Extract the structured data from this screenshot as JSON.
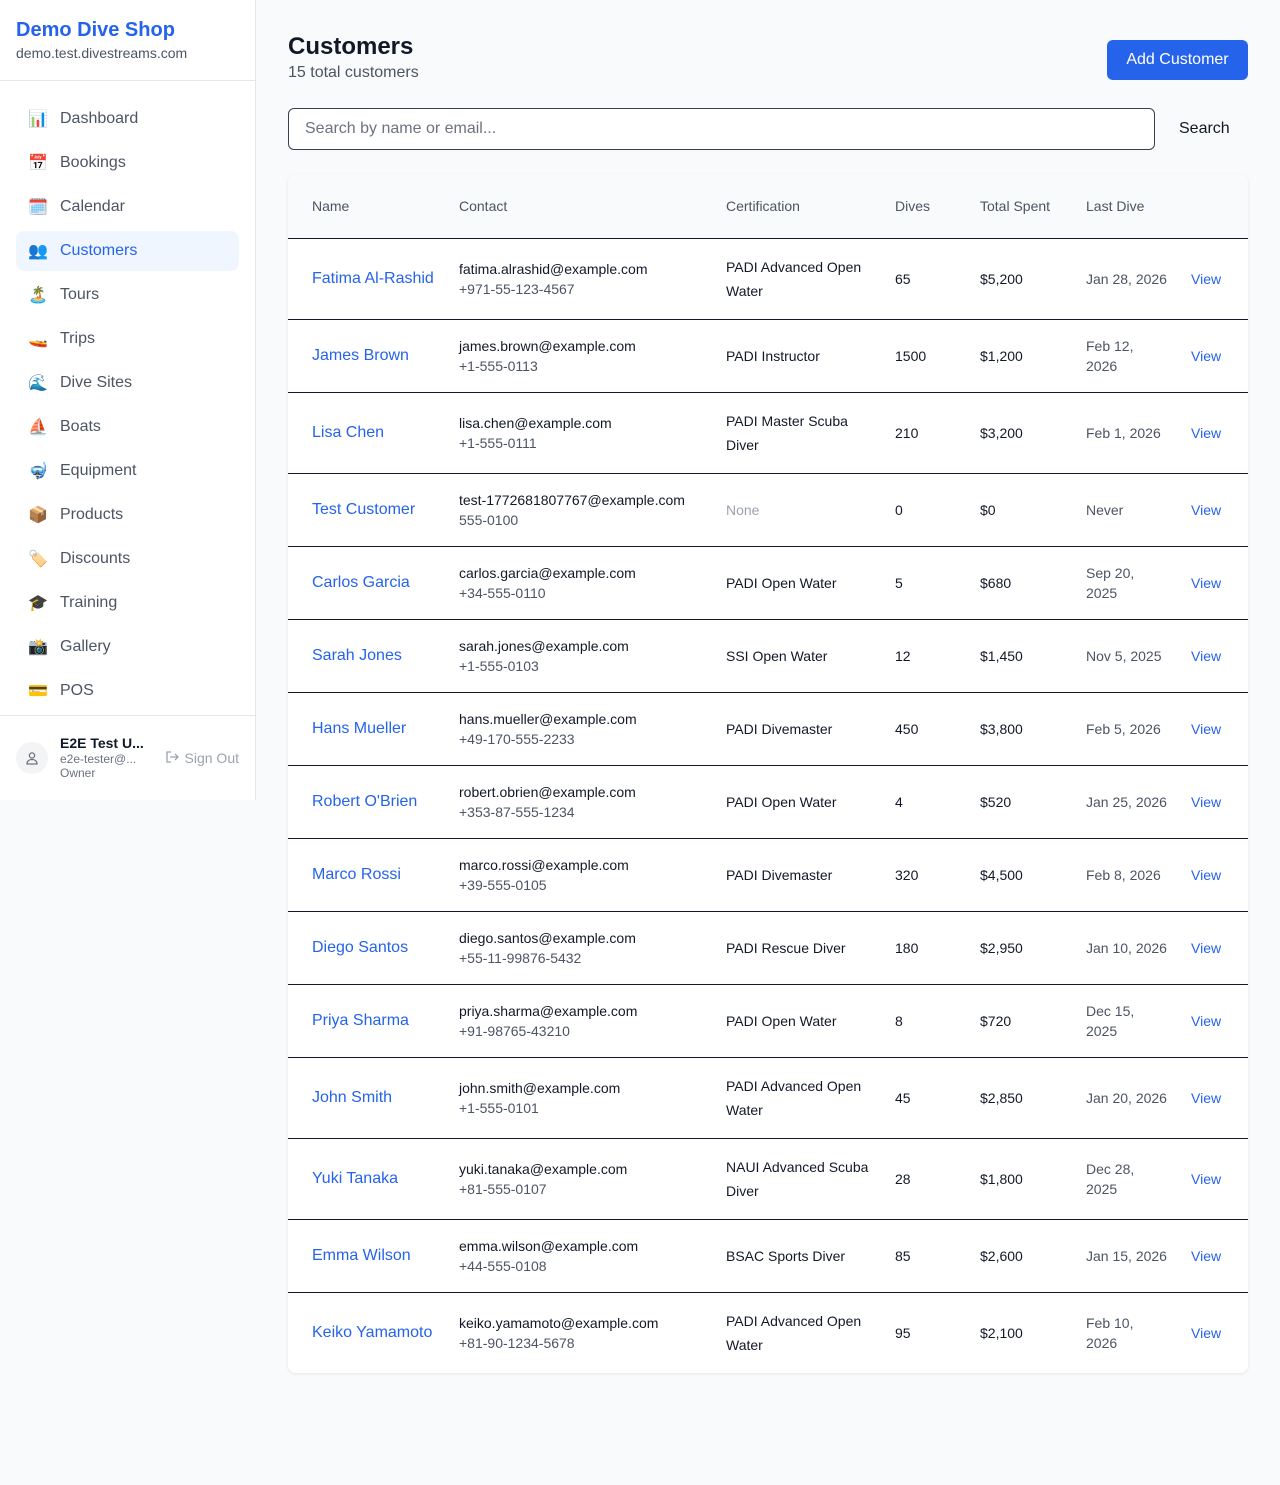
{
  "sidebar": {
    "shop_name": "Demo Dive Shop",
    "domain": "demo.test.divestreams.com",
    "items": [
      {
        "label": "Dashboard",
        "icon": "📊",
        "icon_name": "bar-chart-icon"
      },
      {
        "label": "Bookings",
        "icon": "📅",
        "icon_name": "calendar-date-icon"
      },
      {
        "label": "Calendar",
        "icon": "🗓️",
        "icon_name": "calendar-icon"
      },
      {
        "label": "Customers",
        "icon": "👥",
        "icon_name": "users-icon",
        "active": true
      },
      {
        "label": "Tours",
        "icon": "🏝️",
        "icon_name": "island-icon"
      },
      {
        "label": "Trips",
        "icon": "🚤",
        "icon_name": "speedboat-icon"
      },
      {
        "label": "Dive Sites",
        "icon": "🌊",
        "icon_name": "wave-icon"
      },
      {
        "label": "Boats",
        "icon": "⛵",
        "icon_name": "sailboat-icon"
      },
      {
        "label": "Equipment",
        "icon": "🤿",
        "icon_name": "diving-mask-icon"
      },
      {
        "label": "Products",
        "icon": "📦",
        "icon_name": "package-icon"
      },
      {
        "label": "Discounts",
        "icon": "🏷️",
        "icon_name": "tag-icon"
      },
      {
        "label": "Training",
        "icon": "🎓",
        "icon_name": "graduation-cap-icon"
      },
      {
        "label": "Gallery",
        "icon": "📸",
        "icon_name": "camera-icon"
      },
      {
        "label": "POS",
        "icon": "💳",
        "icon_name": "credit-card-icon"
      }
    ],
    "user": {
      "name": "E2E Test U...",
      "email": "e2e-tester@...",
      "role": "Owner",
      "sign_out": "Sign Out"
    }
  },
  "header": {
    "title": "Customers",
    "subtitle": "15 total customers",
    "add_button": "Add Customer"
  },
  "search": {
    "placeholder": "Search by name or email...",
    "value": "",
    "button": "Search"
  },
  "table": {
    "headers": [
      "Name",
      "Contact",
      "Certification",
      "Dives",
      "Total Spent",
      "Last Dive",
      ""
    ],
    "view_label": "View",
    "rows": [
      {
        "name": "Fatima Al-Rashid",
        "email": "fatima.alrashid@example.com",
        "phone": "+971-55-123-4567",
        "cert": "PADI Advanced Open Water",
        "dives": "65",
        "spent": "$5,200",
        "last": "Jan 28, 2026"
      },
      {
        "name": "James Brown",
        "email": "james.brown@example.com",
        "phone": "+1-555-0113",
        "cert": "PADI Instructor",
        "dives": "1500",
        "spent": "$1,200",
        "last": "Feb 12, 2026"
      },
      {
        "name": "Lisa Chen",
        "email": "lisa.chen@example.com",
        "phone": "+1-555-0111",
        "cert": "PADI Master Scuba Diver",
        "dives": "210",
        "spent": "$3,200",
        "last": "Feb 1, 2026"
      },
      {
        "name": "Test Customer",
        "email": "test-1772681807767@example.com",
        "phone": "555-0100",
        "cert": "None",
        "dives": "0",
        "spent": "$0",
        "last": "Never"
      },
      {
        "name": "Carlos Garcia",
        "email": "carlos.garcia@example.com",
        "phone": "+34-555-0110",
        "cert": "PADI Open Water",
        "dives": "5",
        "spent": "$680",
        "last": "Sep 20, 2025"
      },
      {
        "name": "Sarah Jones",
        "email": "sarah.jones@example.com",
        "phone": "+1-555-0103",
        "cert": "SSI Open Water",
        "dives": "12",
        "spent": "$1,450",
        "last": "Nov 5, 2025"
      },
      {
        "name": "Hans Mueller",
        "email": "hans.mueller@example.com",
        "phone": "+49-170-555-2233",
        "cert": "PADI Divemaster",
        "dives": "450",
        "spent": "$3,800",
        "last": "Feb 5, 2026"
      },
      {
        "name": "Robert O'Brien",
        "email": "robert.obrien@example.com",
        "phone": "+353-87-555-1234",
        "cert": "PADI Open Water",
        "dives": "4",
        "spent": "$520",
        "last": "Jan 25, 2026"
      },
      {
        "name": "Marco Rossi",
        "email": "marco.rossi@example.com",
        "phone": "+39-555-0105",
        "cert": "PADI Divemaster",
        "dives": "320",
        "spent": "$4,500",
        "last": "Feb 8, 2026"
      },
      {
        "name": "Diego Santos",
        "email": "diego.santos@example.com",
        "phone": "+55-11-99876-5432",
        "cert": "PADI Rescue Diver",
        "dives": "180",
        "spent": "$2,950",
        "last": "Jan 10, 2026"
      },
      {
        "name": "Priya Sharma",
        "email": "priya.sharma@example.com",
        "phone": "+91-98765-43210",
        "cert": "PADI Open Water",
        "dives": "8",
        "spent": "$720",
        "last": "Dec 15, 2025"
      },
      {
        "name": "John Smith",
        "email": "john.smith@example.com",
        "phone": "+1-555-0101",
        "cert": "PADI Advanced Open Water",
        "dives": "45",
        "spent": "$2,850",
        "last": "Jan 20, 2026"
      },
      {
        "name": "Yuki Tanaka",
        "email": "yuki.tanaka@example.com",
        "phone": "+81-555-0107",
        "cert": "NAUI Advanced Scuba Diver",
        "dives": "28",
        "spent": "$1,800",
        "last": "Dec 28, 2025"
      },
      {
        "name": "Emma Wilson",
        "email": "emma.wilson@example.com",
        "phone": "+44-555-0108",
        "cert": "BSAC Sports Diver",
        "dives": "85",
        "spent": "$2,600",
        "last": "Jan 15, 2026"
      },
      {
        "name": "Keiko Yamamoto",
        "email": "keiko.yamamoto@example.com",
        "phone": "+81-90-1234-5678",
        "cert": "PADI Advanced Open Water",
        "dives": "95",
        "spent": "$2,100",
        "last": "Feb 10, 2026"
      }
    ]
  }
}
